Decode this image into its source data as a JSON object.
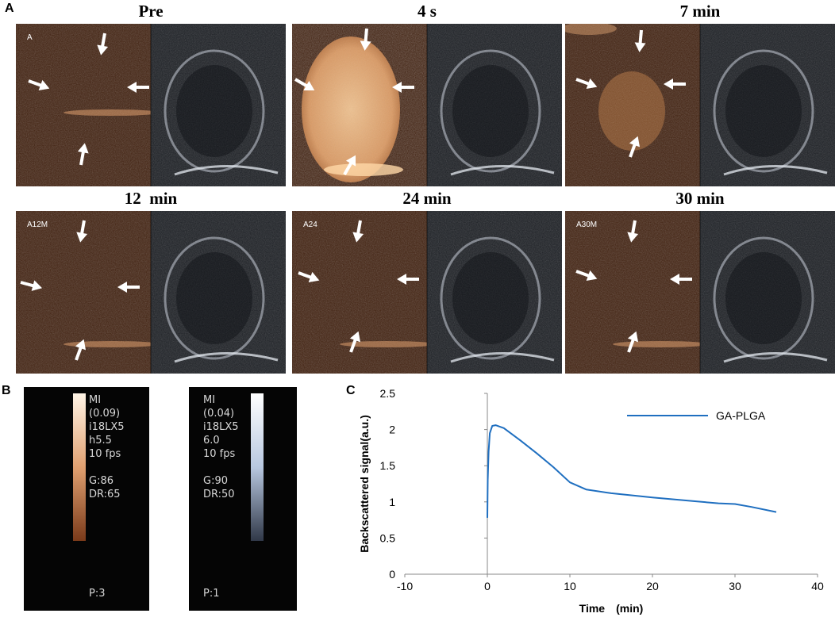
{
  "panel_a": {
    "letter": "A",
    "frames": [
      {
        "title": "Pre",
        "label": "A"
      },
      {
        "title": "4 s",
        "label": ""
      },
      {
        "title": "7 min",
        "label": ""
      },
      {
        "title": "12  min",
        "label": "A12M"
      },
      {
        "title": "24 min",
        "label": "A24"
      },
      {
        "title": "30 min",
        "label": "A30M"
      }
    ]
  },
  "panel_b": {
    "letter": "B",
    "bars": [
      {
        "lines": [
          "MI",
          "(0.09)",
          "i18LX5",
          "h5.5",
          "10 fps",
          "",
          "G:86",
          "DR:65"
        ],
        "footer": "P:3",
        "gradient": [
          "#fff4e6",
          "#e0a070",
          "#7a3a1a"
        ]
      },
      {
        "lines": [
          "MI",
          "(0.04)",
          "i18LX5",
          "6.0",
          "10 fps",
          "",
          "G:90",
          "DR:50"
        ],
        "footer": "P:1",
        "gradient": [
          "#ffffff",
          "#b8c8e0",
          "#303848"
        ]
      }
    ]
  },
  "panel_c": {
    "letter": "C"
  },
  "chart_data": {
    "type": "line",
    "xlabel": "Time　(min)",
    "ylabel": "Backscattered signal(a.u.)",
    "xlim": [
      -10,
      40
    ],
    "ylim": [
      0,
      2.5
    ],
    "xticks": [
      -10,
      0,
      10,
      20,
      30,
      40
    ],
    "yticks": [
      0,
      0.5,
      1,
      1.5,
      2,
      2.5
    ],
    "grid": false,
    "legend_position": "top-right",
    "series": [
      {
        "name": "GA-PLGA",
        "color": "#1f6fc0",
        "x": [
          0,
          0.05,
          0.15,
          0.3,
          0.6,
          1,
          2,
          4,
          6,
          8,
          10,
          12,
          15,
          20,
          25,
          28,
          30,
          32,
          35
        ],
        "y": [
          0.78,
          1.3,
          1.7,
          1.95,
          2.05,
          2.06,
          2.02,
          1.85,
          1.67,
          1.48,
          1.27,
          1.17,
          1.12,
          1.06,
          1.01,
          0.98,
          0.97,
          0.93,
          0.86
        ]
      }
    ]
  }
}
